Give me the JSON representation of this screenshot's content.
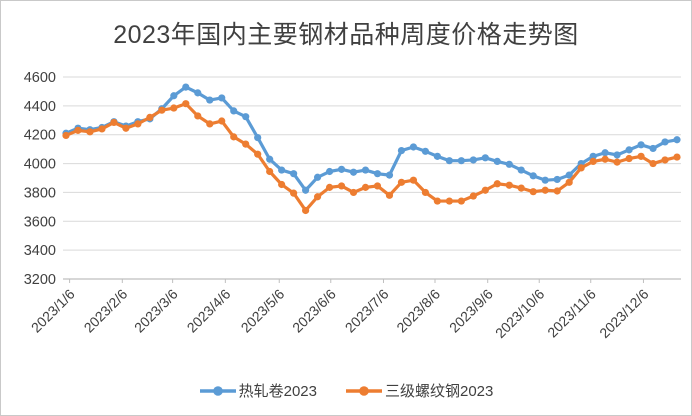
{
  "window": {
    "background": "#ffffff",
    "border_color": "#c9c9c9"
  },
  "title": "2023年国内主要钢材品种周度价格走势图",
  "colors": {
    "series1": "#5b9bd5",
    "series2": "#ed7d31",
    "gridline": "#d9d9d9",
    "axis_line": "#bfbfbf",
    "axis_text": "#404040",
    "title_text": "#404040"
  },
  "legend": {
    "position": "bottom-center",
    "items": [
      {
        "label": "热轧卷2023",
        "color": "#5b9bd5"
      },
      {
        "label": "三级螺纹钢2023",
        "color": "#ed7d31"
      }
    ]
  },
  "chart_data": {
    "type": "line",
    "title": "2023年国内主要钢材品种周度价格走势图",
    "xlabel": "",
    "ylabel": "",
    "ylim": [
      3200,
      4600
    ],
    "y_ticks": [
      3200,
      3400,
      3600,
      3800,
      4000,
      4200,
      4400,
      4600
    ],
    "grid": "horizontal",
    "legend_position": "bottom",
    "marker": "circle",
    "n_points": 52,
    "x_tick_labels": [
      "2023/1/6",
      "2023/2/6",
      "2023/3/6",
      "2023/4/6",
      "2023/5/6",
      "2023/6/6",
      "2023/7/6",
      "2023/8/6",
      "2023/9/6",
      "2023/10/6",
      "2023/11/6",
      "2023/12/6"
    ],
    "x_tick_indices": [
      0.3,
      4.7,
      8.9,
      13.3,
      17.8,
      22.1,
      26.5,
      30.8,
      35.2,
      39.5,
      43.8,
      48.2
    ],
    "series": [
      {
        "name": "热轧卷2023",
        "color": "#5b9bd5",
        "values": [
          4210,
          4245,
          4235,
          4250,
          4290,
          4260,
          4290,
          4310,
          4380,
          4470,
          4530,
          4490,
          4440,
          4455,
          4365,
          4325,
          4180,
          4030,
          3955,
          3930,
          3815,
          3905,
          3945,
          3960,
          3940,
          3955,
          3930,
          3920,
          4090,
          4115,
          4085,
          4050,
          4020,
          4020,
          4025,
          4040,
          4015,
          3995,
          3955,
          3915,
          3885,
          3890,
          3920,
          4000,
          4050,
          4075,
          4060,
          4095,
          4130,
          4105,
          4150,
          4165
        ]
      },
      {
        "name": "三级螺纹钢2023",
        "color": "#ed7d31",
        "values": [
          4195,
          4230,
          4220,
          4240,
          4285,
          4245,
          4275,
          4320,
          4370,
          4385,
          4415,
          4330,
          4275,
          4295,
          4185,
          4135,
          4065,
          3945,
          3855,
          3795,
          3675,
          3770,
          3835,
          3845,
          3800,
          3835,
          3845,
          3780,
          3870,
          3885,
          3800,
          3740,
          3740,
          3740,
          3775,
          3815,
          3860,
          3850,
          3830,
          3805,
          3815,
          3810,
          3870,
          3970,
          4015,
          4030,
          4010,
          4035,
          4050,
          4000,
          4025,
          4045
        ]
      }
    ]
  }
}
